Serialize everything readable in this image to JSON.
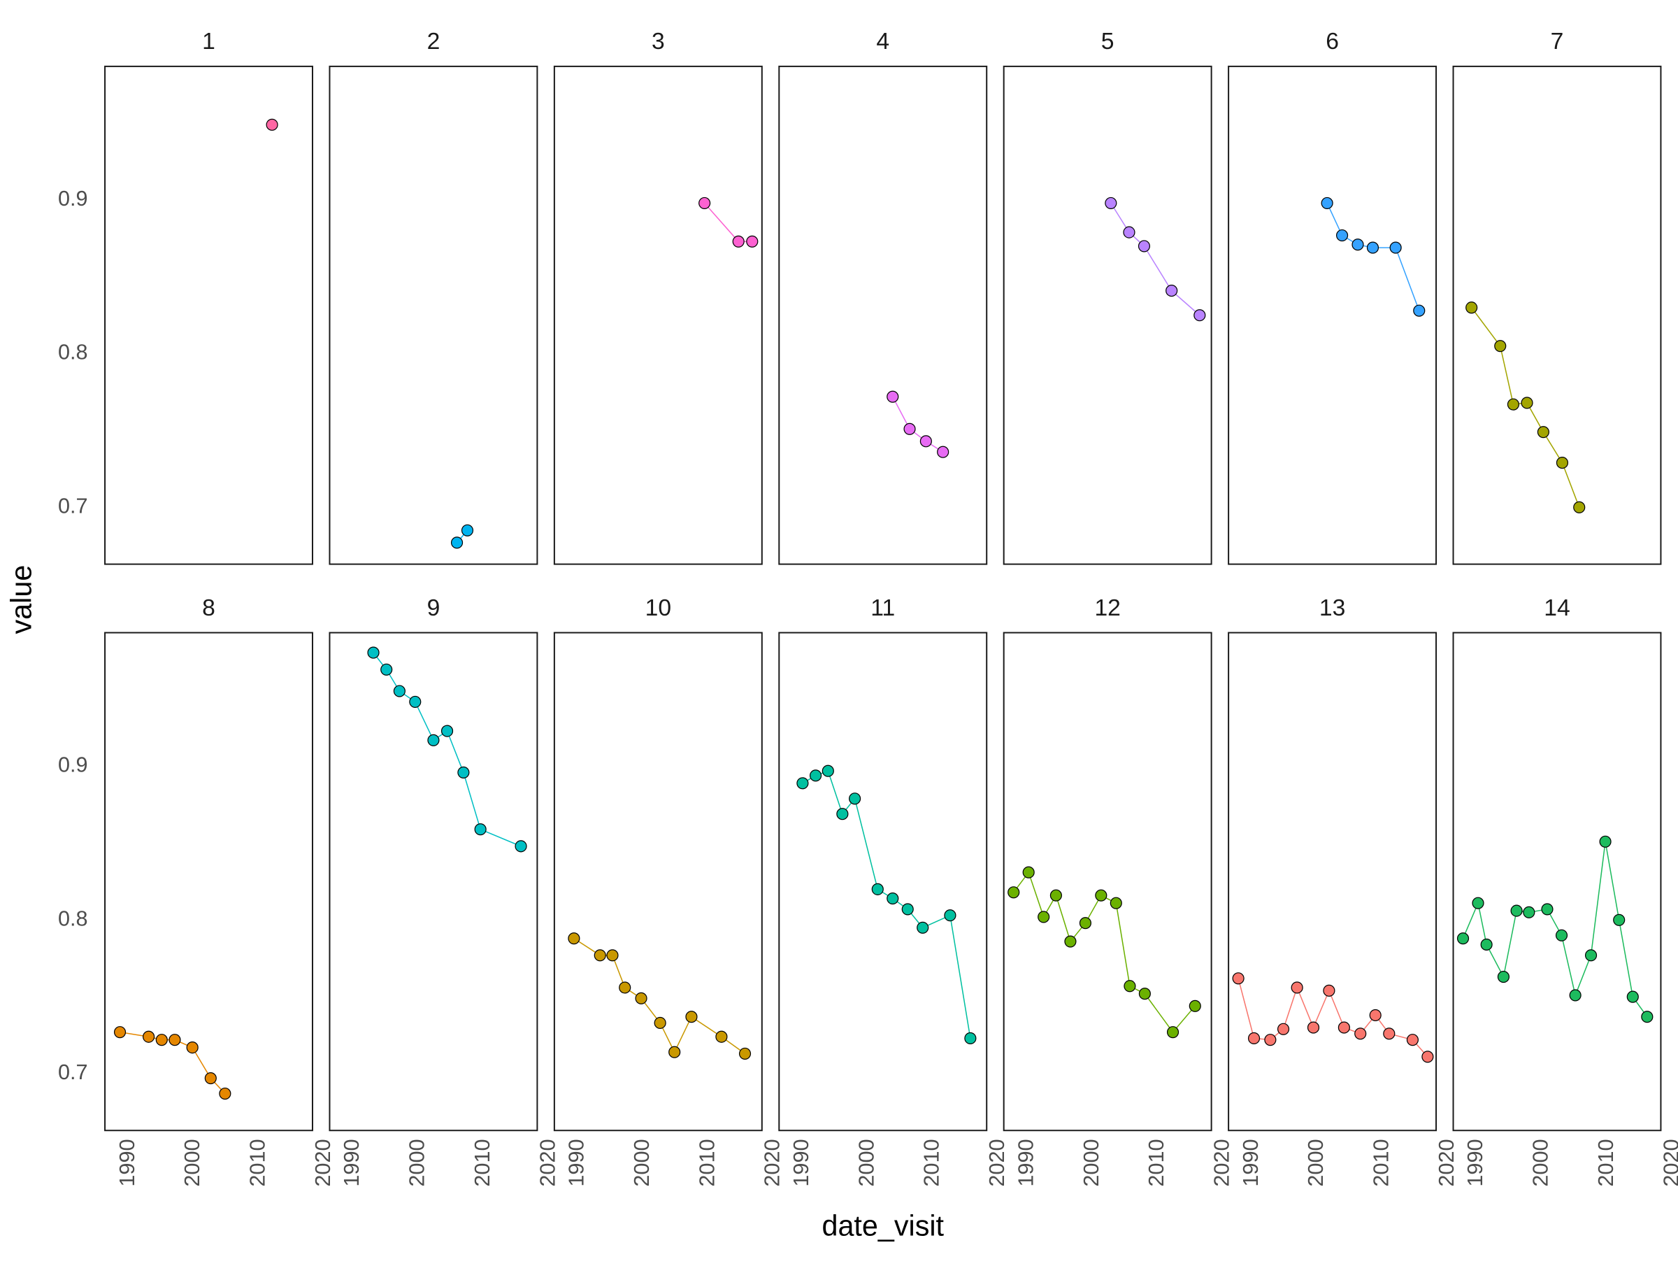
{
  "chart_data": {
    "type": "line",
    "x_label": "date_visit",
    "y_label": "value",
    "xlim": [
      1986.4,
      2018.2
    ],
    "ylim": [
      0.663,
      0.987
    ],
    "xticks": [
      1990,
      2000,
      2010,
      2020
    ],
    "yticks": [
      0.7,
      0.8,
      0.9
    ],
    "panels": [
      {
        "title": "1",
        "color": "#FF67A4",
        "x": [
          2012.0
        ],
        "values": [
          0.949
        ]
      },
      {
        "title": "2",
        "color": "#00B4F0",
        "x": [
          2005.9,
          2007.5
        ],
        "values": [
          0.677,
          0.685
        ]
      },
      {
        "title": "3",
        "color": "#FD61D1",
        "x": [
          2009.4,
          2014.6,
          2016.7
        ],
        "values": [
          0.898,
          0.873,
          0.873
        ]
      },
      {
        "title": "4",
        "color": "#E76BF3",
        "x": [
          2003.8,
          2006.4,
          2008.9,
          2011.5
        ],
        "values": [
          0.772,
          0.751,
          0.743,
          0.736
        ]
      },
      {
        "title": "5",
        "color": "#B983FF",
        "x": [
          2002.8,
          2005.6,
          2007.9,
          2012.1,
          2016.4
        ],
        "values": [
          0.898,
          0.879,
          0.87,
          0.841,
          0.825
        ]
      },
      {
        "title": "6",
        "color": "#35A2FF",
        "x": [
          2001.5,
          2003.8,
          2006.2,
          2008.5,
          2012.0,
          2015.6
        ],
        "values": [
          0.898,
          0.877,
          0.871,
          0.869,
          0.869,
          0.828
        ]
      },
      {
        "title": "7",
        "color": "#A3A500",
        "x": [
          1989.2,
          1993.6,
          1995.6,
          1997.7,
          2000.2,
          2003.1,
          2005.7
        ],
        "values": [
          0.83,
          0.805,
          0.767,
          0.768,
          0.749,
          0.729,
          0.7
        ]
      },
      {
        "title": "8",
        "color": "#E58700",
        "x": [
          1988.7,
          1993.1,
          1995.1,
          1997.1,
          1999.8,
          2002.6,
          2004.8
        ],
        "values": [
          0.727,
          0.724,
          0.722,
          0.722,
          0.717,
          0.697,
          0.687
        ]
      },
      {
        "title": "9",
        "color": "#00BFC4",
        "x": [
          1993.1,
          1995.1,
          1997.1,
          1999.5,
          2002.3,
          2004.4,
          2006.9,
          2009.5,
          2015.7
        ],
        "values": [
          0.974,
          0.963,
          0.949,
          0.942,
          0.917,
          0.923,
          0.896,
          0.859,
          0.848
        ]
      },
      {
        "title": "10",
        "color": "#C99800",
        "x": [
          1989.4,
          1993.4,
          1995.3,
          1997.2,
          1999.7,
          2002.6,
          2004.8,
          2007.4,
          2012.0,
          2015.6
        ],
        "values": [
          0.788,
          0.777,
          0.777,
          0.756,
          0.749,
          0.733,
          0.714,
          0.737,
          0.724,
          0.713
        ]
      },
      {
        "title": "11",
        "color": "#00C0A0",
        "x": [
          1990.0,
          1992.0,
          1993.9,
          1996.1,
          1998.0,
          2001.5,
          2003.8,
          2006.1,
          2008.4,
          2012.6,
          2015.7
        ],
        "values": [
          0.889,
          0.894,
          0.897,
          0.869,
          0.879,
          0.82,
          0.814,
          0.807,
          0.795,
          0.803,
          0.723
        ]
      },
      {
        "title": "12",
        "color": "#6BB100",
        "x": [
          1987.9,
          1990.2,
          1992.5,
          1994.4,
          1996.6,
          1998.9,
          2001.3,
          2003.6,
          2005.7,
          2008.0,
          2012.3,
          2015.7
        ],
        "values": [
          0.818,
          0.831,
          0.802,
          0.816,
          0.786,
          0.798,
          0.816,
          0.811,
          0.757,
          0.752,
          0.727,
          0.744
        ]
      },
      {
        "title": "13",
        "color": "#F8766D",
        "x": [
          1987.9,
          1990.3,
          1992.8,
          1994.8,
          1996.9,
          1999.4,
          2001.8,
          2004.1,
          2006.6,
          2008.9,
          2011.0,
          2014.6,
          2016.9
        ],
        "values": [
          0.762,
          0.723,
          0.722,
          0.729,
          0.756,
          0.73,
          0.754,
          0.73,
          0.726,
          0.738,
          0.726,
          0.722,
          0.711
        ]
      },
      {
        "title": "14",
        "color": "#1DBB5E",
        "x": [
          1987.9,
          1990.2,
          1991.5,
          1994.1,
          1996.1,
          1998.0,
          2000.8,
          2003.0,
          2005.1,
          2007.5,
          2009.7,
          2011.8,
          2013.9,
          2016.1
        ],
        "values": [
          0.788,
          0.811,
          0.784,
          0.763,
          0.806,
          0.805,
          0.807,
          0.79,
          0.751,
          0.777,
          0.851,
          0.8,
          0.75,
          0.737
        ]
      }
    ]
  }
}
